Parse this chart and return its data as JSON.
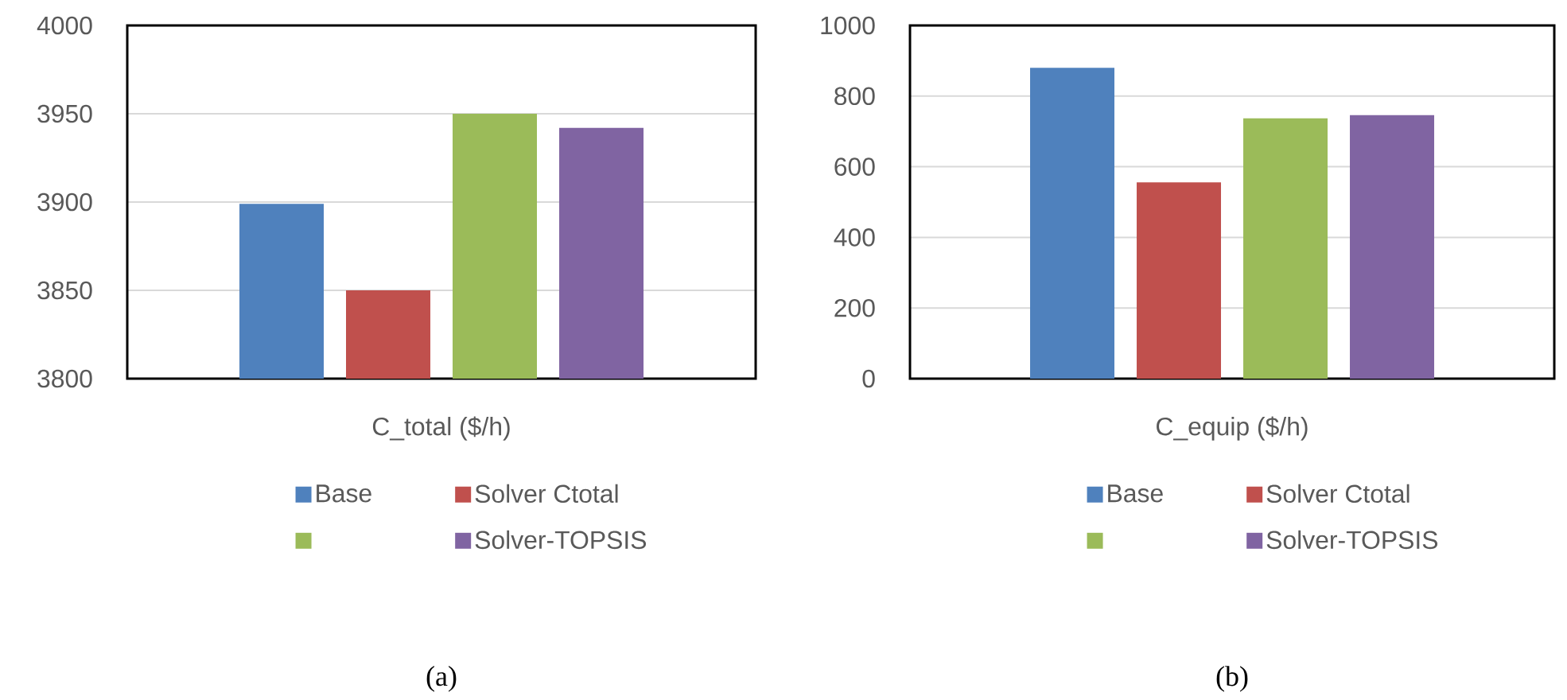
{
  "chart_data": [
    {
      "type": "bar",
      "categories": [
        "C_total ($/h)"
      ],
      "series": [
        {
          "name": "Base",
          "color": "#4f81bd",
          "values": [
            3899
          ]
        },
        {
          "name": "Solver Ctotal",
          "color": "#c0504d",
          "values": [
            3850
          ]
        },
        {
          "color": "#9bbb59",
          "values": [
            3950
          ]
        },
        {
          "name": "Solver-TOPSIS",
          "color": "#8064a2",
          "values": [
            3942
          ]
        }
      ],
      "ylim": [
        3800,
        4000
      ],
      "yticks": [
        3800,
        3850,
        3900,
        3950,
        4000
      ],
      "grid": "y",
      "legend": "bottom",
      "annotations": [
        "(a)"
      ]
    },
    {
      "type": "bar",
      "categories": [
        "C_equip ($/h)"
      ],
      "series": [
        {
          "name": "Base",
          "color": "#4f81bd",
          "values": [
            880
          ]
        },
        {
          "name": "Solver Ctotal",
          "color": "#c0504d",
          "values": [
            556
          ]
        },
        {
          "color": "#9bbb59",
          "values": [
            737
          ]
        },
        {
          "name": "Solver-TOPSIS",
          "color": "#8064a2",
          "values": [
            746
          ]
        }
      ],
      "ylim": [
        0,
        1000
      ],
      "yticks": [
        0,
        200,
        400,
        600,
        800,
        1000
      ],
      "grid": "y",
      "legend": "bottom",
      "annotations": [
        "(b)"
      ]
    }
  ]
}
